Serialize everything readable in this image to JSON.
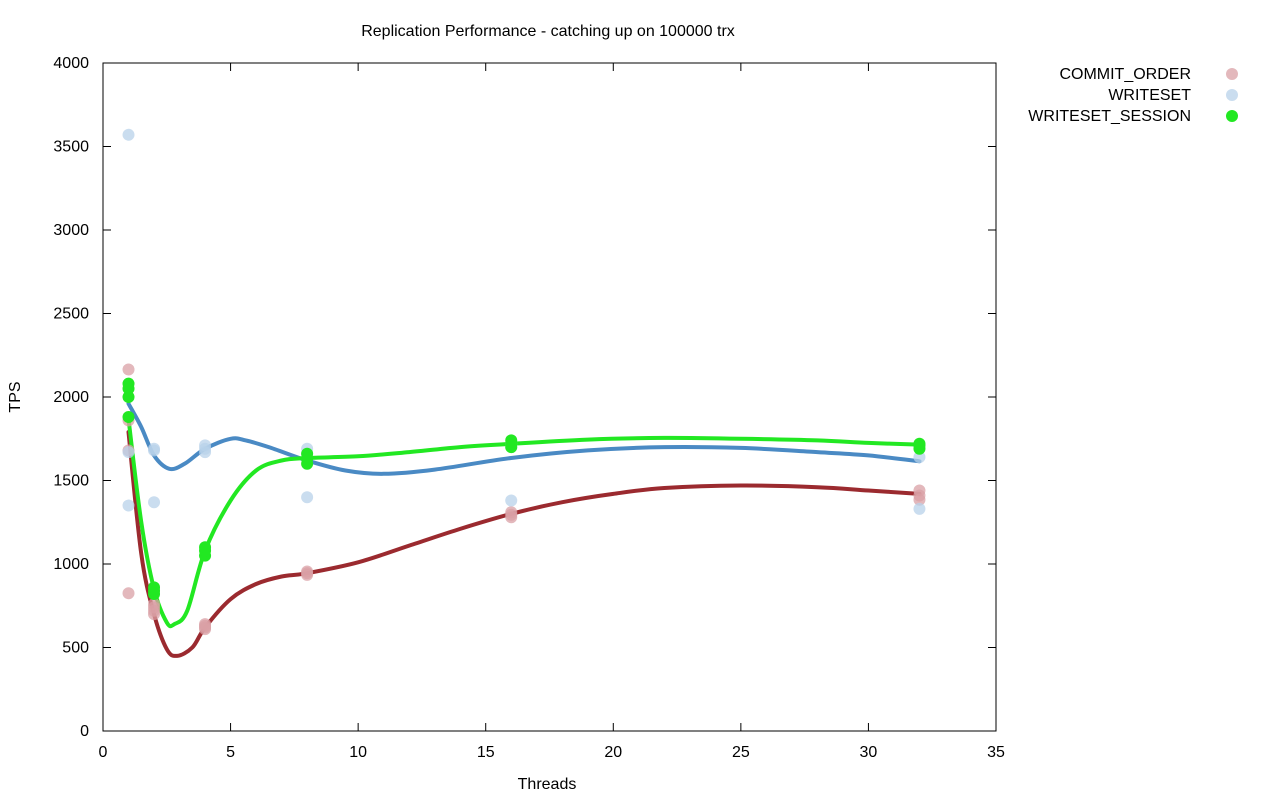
{
  "chart_data": {
    "type": "scatter",
    "title": "Replication Performance - catching up on 100000 trx",
    "xlabel": "Threads",
    "ylabel": "TPS",
    "xlim": [
      0,
      35
    ],
    "ylim": [
      0,
      4000
    ],
    "x_ticks": [
      0,
      5,
      10,
      15,
      20,
      25,
      30,
      35
    ],
    "y_ticks": [
      0,
      500,
      1000,
      1500,
      2000,
      2500,
      3000,
      3500,
      4000
    ],
    "grid": false,
    "legend_position": "top-right outside",
    "series": [
      {
        "name": "COMMIT_ORDER",
        "point_color": "#d9a0a6",
        "line_color": "#9b2a2f",
        "points": [
          [
            1,
            2165
          ],
          [
            1,
            1860
          ],
          [
            1,
            825
          ],
          [
            1,
            1680
          ],
          [
            2,
            700
          ],
          [
            2,
            720
          ],
          [
            2,
            740
          ],
          [
            2,
            760
          ],
          [
            4,
            610
          ],
          [
            4,
            620
          ],
          [
            4,
            630
          ],
          [
            4,
            640
          ],
          [
            8,
            935
          ],
          [
            8,
            945
          ],
          [
            8,
            955
          ],
          [
            16,
            1280
          ],
          [
            16,
            1295
          ],
          [
            16,
            1310
          ],
          [
            32,
            1385
          ],
          [
            32,
            1410
          ],
          [
            32,
            1440
          ]
        ],
        "fit": [
          [
            1,
            1790
          ],
          [
            1.5,
            1060
          ],
          [
            2,
            700
          ],
          [
            2.5,
            490
          ],
          [
            2.9,
            450
          ],
          [
            3.5,
            500
          ],
          [
            4,
            620
          ],
          [
            5,
            790
          ],
          [
            6,
            880
          ],
          [
            7,
            925
          ],
          [
            8,
            945
          ],
          [
            10,
            1010
          ],
          [
            12,
            1110
          ],
          [
            14,
            1210
          ],
          [
            16,
            1300
          ],
          [
            18,
            1370
          ],
          [
            20,
            1420
          ],
          [
            22,
            1455
          ],
          [
            25,
            1470
          ],
          [
            28,
            1460
          ],
          [
            30,
            1440
          ],
          [
            32,
            1420
          ]
        ]
      },
      {
        "name": "WRITESET",
        "point_color": "#b8d2ea",
        "line_color": "#4a8ac4",
        "points": [
          [
            1,
            3570
          ],
          [
            1,
            1670
          ],
          [
            1,
            1350
          ],
          [
            2,
            1680
          ],
          [
            2,
            1690
          ],
          [
            2,
            1370
          ],
          [
            4,
            1670
          ],
          [
            4,
            1690
          ],
          [
            4,
            1710
          ],
          [
            8,
            1400
          ],
          [
            8,
            1660
          ],
          [
            8,
            1690
          ],
          [
            16,
            1380
          ],
          [
            16,
            1700
          ],
          [
            16,
            1720
          ],
          [
            32,
            1330
          ],
          [
            32,
            1640
          ],
          [
            32,
            1700
          ]
        ],
        "fit": [
          [
            1,
            1960
          ],
          [
            1.5,
            1820
          ],
          [
            2,
            1650
          ],
          [
            2.6,
            1570
          ],
          [
            3.2,
            1600
          ],
          [
            4,
            1690
          ],
          [
            5,
            1750
          ],
          [
            5.6,
            1740
          ],
          [
            6.5,
            1700
          ],
          [
            8,
            1620
          ],
          [
            9.5,
            1560
          ],
          [
            11,
            1540
          ],
          [
            13,
            1565
          ],
          [
            16,
            1635
          ],
          [
            19,
            1680
          ],
          [
            22,
            1700
          ],
          [
            25,
            1695
          ],
          [
            28,
            1670
          ],
          [
            30,
            1650
          ],
          [
            32,
            1615
          ]
        ]
      },
      {
        "name": "WRITESET_SESSION",
        "point_color": "#22e822",
        "line_color": "#22e822",
        "points": [
          [
            1,
            2080
          ],
          [
            1,
            2050
          ],
          [
            1,
            2000
          ],
          [
            1,
            1880
          ],
          [
            2,
            820
          ],
          [
            2,
            840
          ],
          [
            2,
            860
          ],
          [
            4,
            1050
          ],
          [
            4,
            1080
          ],
          [
            4,
            1100
          ],
          [
            8,
            1600
          ],
          [
            8,
            1630
          ],
          [
            8,
            1660
          ],
          [
            16,
            1700
          ],
          [
            16,
            1720
          ],
          [
            16,
            1740
          ],
          [
            32,
            1690
          ],
          [
            32,
            1710
          ],
          [
            32,
            1720
          ]
        ],
        "fit": [
          [
            1,
            1870
          ],
          [
            1.5,
            1250
          ],
          [
            2,
            850
          ],
          [
            2.5,
            650
          ],
          [
            2.8,
            640
          ],
          [
            3.3,
            720
          ],
          [
            4,
            1080
          ],
          [
            5,
            1380
          ],
          [
            6,
            1560
          ],
          [
            7,
            1620
          ],
          [
            8,
            1635
          ],
          [
            10,
            1645
          ],
          [
            12,
            1670
          ],
          [
            14,
            1700
          ],
          [
            16,
            1720
          ],
          [
            19,
            1745
          ],
          [
            22,
            1755
          ],
          [
            25,
            1750
          ],
          [
            28,
            1740
          ],
          [
            30,
            1725
          ],
          [
            32,
            1715
          ]
        ]
      }
    ]
  }
}
